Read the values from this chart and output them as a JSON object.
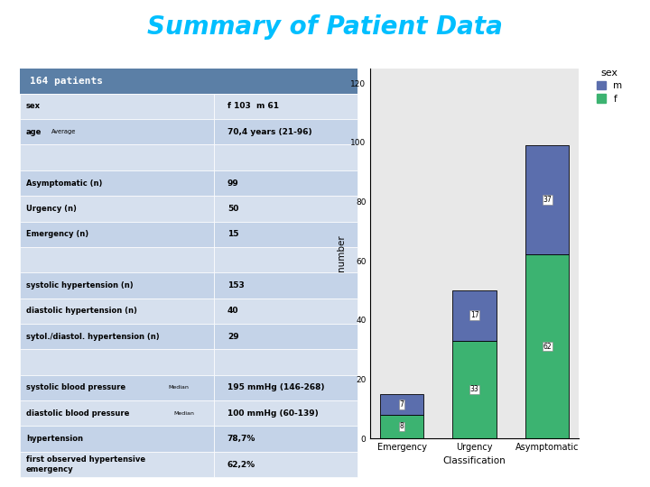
{
  "title": "Summary of Patient Data",
  "title_color": "#00BFFF",
  "title_fontsize": 20,
  "table_header": "164 patients",
  "table_header_bg": "#5B7FA6",
  "table_header_color": "white",
  "table_rows": [
    [
      "sex",
      "f 103  m 61"
    ],
    [
      "age   Average",
      "70,4 years (21-96)"
    ],
    [
      "",
      ""
    ],
    [
      "Asymptomatic (n)",
      "99"
    ],
    [
      "Urgency (n)",
      "50"
    ],
    [
      "Emergency (n)",
      "15"
    ],
    [
      "",
      ""
    ],
    [
      "systolic hypertension (n)",
      "153"
    ],
    [
      "diastolic hypertension (n)",
      "40"
    ],
    [
      "sytol./diastol. hypertension (n)",
      "29"
    ],
    [
      "",
      ""
    ],
    [
      "systolic blood pressure  Median",
      "195 mmHg (146-268)"
    ],
    [
      "diastolic blood pressure  Median",
      "100 mmHg (60-139)"
    ],
    [
      "hypertension",
      "78,7%"
    ],
    [
      "first observed hypertensive emergency",
      "62,2%"
    ]
  ],
  "row_colors": [
    "#D6E0EE",
    "#C4D3E8",
    "#D6E0EE",
    "#C4D3E8",
    "#D6E0EE",
    "#C4D3E8",
    "#D6E0EE",
    "#C4D3E8",
    "#D6E0EE",
    "#C4D3E8",
    "#D6E0EE",
    "#C4D3E8",
    "#D6E0EE",
    "#C4D3E8",
    "#D6E0EE"
  ],
  "bar_categories": [
    "Emergency",
    "Urgency",
    "Asymptomatic"
  ],
  "bar_m": [
    7,
    17,
    37
  ],
  "bar_f": [
    8,
    33,
    62
  ],
  "bar_color_m": "#5B6EAD",
  "bar_color_f": "#3CB371",
  "bar_xlabel": "Classification",
  "bar_ylabel": "number",
  "bar_ylim": [
    0,
    125
  ],
  "bar_yticks": [
    0,
    20,
    40,
    60,
    80,
    100,
    120
  ],
  "bar_bg": "#E8E8E8",
  "legend_title": "sex"
}
